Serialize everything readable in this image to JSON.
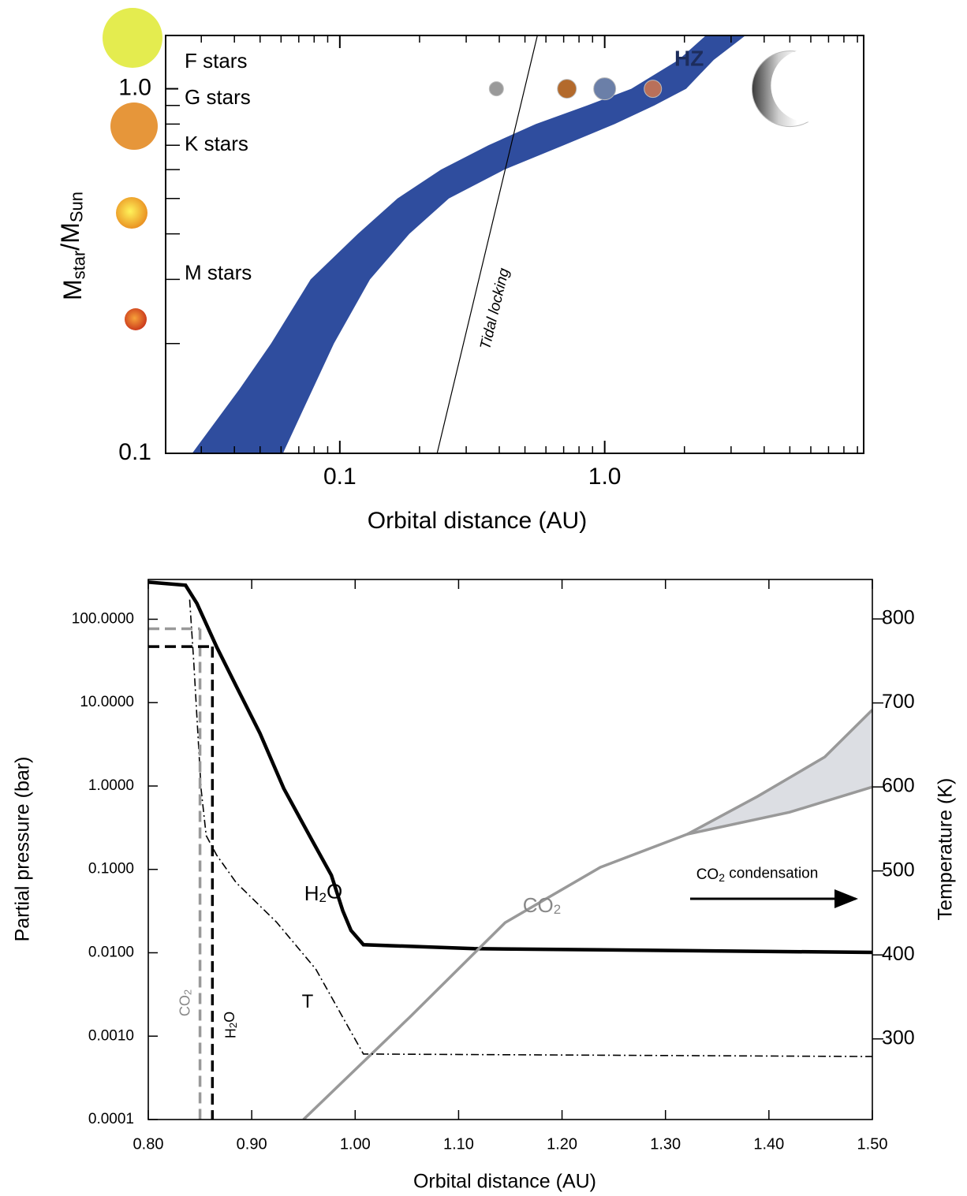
{
  "chart_data": [
    {
      "type": "area",
      "xlabel": "Orbital distance (AU)",
      "ylabel": [
        "M",
        "star",
        "/M",
        "Sun"
      ],
      "xscale": "log",
      "yscale": "log",
      "xlim": [
        0.022,
        9.5
      ],
      "ylim": [
        0.1,
        1.4
      ],
      "xticks": [
        0.1,
        {
          "value": 1,
          "label": "1.0"
        }
      ],
      "xminorticks": [
        0.03,
        0.04,
        0.05,
        0.06,
        0.07,
        0.08,
        0.09,
        0.2,
        0.3,
        0.4,
        0.5,
        0.6,
        0.7,
        0.8,
        0.9,
        2,
        3,
        4,
        5,
        6,
        7,
        8,
        9
      ],
      "yticks": [
        0.1,
        {
          "value": 1,
          "label": "1.0"
        }
      ],
      "yminorticks": [
        0.2,
        0.3,
        0.4,
        0.5,
        0.6,
        0.7,
        0.8,
        0.9
      ],
      "star_types": {
        "labels": [
          "F stars",
          "G stars",
          "K stars",
          "M stars"
        ],
        "mass": [
          1.18,
          0.94,
          0.7,
          0.31
        ]
      },
      "hz": {
        "label": "HZ",
        "color": "#2f4d9e",
        "mass": [
          0.1,
          0.15,
          0.2,
          0.3,
          0.4,
          0.5,
          0.6,
          0.7,
          0.8,
          0.9,
          1.0,
          1.2,
          1.4
        ],
        "inner": [
          0.0277,
          0.0418,
          0.055,
          0.0776,
          0.117,
          0.165,
          0.241,
          0.364,
          0.549,
          0.859,
          1.26,
          1.9,
          2.41
        ],
        "outer": [
          0.061,
          0.079,
          0.095,
          0.13,
          0.183,
          0.258,
          0.418,
          0.7,
          1.09,
          1.54,
          2.03,
          2.58,
          3.4
        ]
      },
      "tidal_locking": {
        "label": "Tidal locking",
        "x": [
          0.233,
          0.557
        ],
        "mass": [
          0.1,
          1.4
        ]
      },
      "planets": {
        "x": [
          0.39,
          0.72,
          1,
          1.52,
          5.0
        ],
        "mass": 1,
        "colors": [
          "#9a9a9a",
          "#b36a2c",
          "#6b7fa8",
          "#b9705a",
          "#8c8c8c"
        ]
      }
    },
    {
      "type": "line",
      "xlabel": "Orbital distance (AU)",
      "ylabel": "Partial pressure (bar)",
      "y2label": "Temperature (K)",
      "yscale": "log",
      "xlim": [
        0.8,
        1.5
      ],
      "ylim": [
        0.0001,
        300
      ],
      "y2lim": [
        204,
        847
      ],
      "xticks": [
        {
          "value": 0.8,
          "label": "0.80"
        },
        {
          "value": 0.9,
          "label": "0.90"
        },
        {
          "value": 1,
          "label": "1.00"
        },
        {
          "value": 1.1,
          "label": "1.10"
        },
        {
          "value": 1.2,
          "label": "1.20"
        },
        {
          "value": 1.3,
          "label": "1.30"
        },
        {
          "value": 1.4,
          "label": "1.40"
        },
        {
          "value": 1.5,
          "label": "1.50"
        }
      ],
      "yticks": [
        0.0001,
        {
          "value": 0.001,
          "label": "0.0010"
        },
        {
          "value": 0.01,
          "label": "0.0100"
        },
        {
          "value": 0.1,
          "label": "0.1000"
        },
        {
          "value": 1,
          "label": "1.0000"
        },
        {
          "value": 10,
          "label": "10.0000"
        },
        {
          "value": 100,
          "label": "100.0000"
        }
      ],
      "y2ticks": [
        300,
        400,
        500,
        600,
        700,
        800
      ],
      "series": [
        {
          "label": [
            "H",
            "2",
            "O"
          ],
          "color": "#000000",
          "axis": "y",
          "x": [
            0.8,
            0.836,
            0.847,
            0.866,
            0.885,
            0.908,
            0.931,
            0.958,
            0.977,
            0.988,
            0.996,
            1.008,
            1.115,
            1.5
          ],
          "values": [
            279,
            256,
            155,
            46.9,
            15.8,
            4.28,
            0.933,
            0.227,
            0.0851,
            0.032,
            0.0185,
            0.0125,
            0.0112,
            0.0101
          ]
        },
        {
          "label": [
            "CO",
            "2"
          ],
          "color": "#999999",
          "axis": "y",
          "fill": "#dcdee3",
          "x": [
            0.95,
            1.053,
            1.145,
            1.237,
            1.321,
            1.389,
            1.454,
            1.5
          ],
          "values": [
            0.0001,
            0.0017,
            0.023,
            0.106,
            0.264,
            0.75,
            2.23,
            8.2
          ],
          "x_lower": [
            1.321,
            1.42,
            1.5
          ],
          "values_lower": [
            0.264,
            0.485,
            0.975
          ]
        },
        {
          "label": [
            "T"
          ],
          "color": "#000000",
          "axis": "y2",
          "style": "dash-dot",
          "x": [
            0.84,
            0.844,
            0.851,
            0.856,
            0.866,
            0.885,
            0.924,
            0.962,
            0.992,
            1.008,
            1.5
          ],
          "values": [
            823,
            748,
            598,
            542,
            519,
            486,
            439,
            383,
            317,
            282,
            279
          ]
        }
      ],
      "saturation": [
        {
          "label": [
            "CO",
            "2"
          ],
          "color": "#999999",
          "x": 0.85,
          "value": 77
        },
        {
          "label": [
            "H",
            "2",
            "O"
          ],
          "color": "#000000",
          "x": 0.862,
          "value": 47
        }
      ],
      "annotation": [
        "CO",
        "2",
        " condensation"
      ]
    }
  ]
}
